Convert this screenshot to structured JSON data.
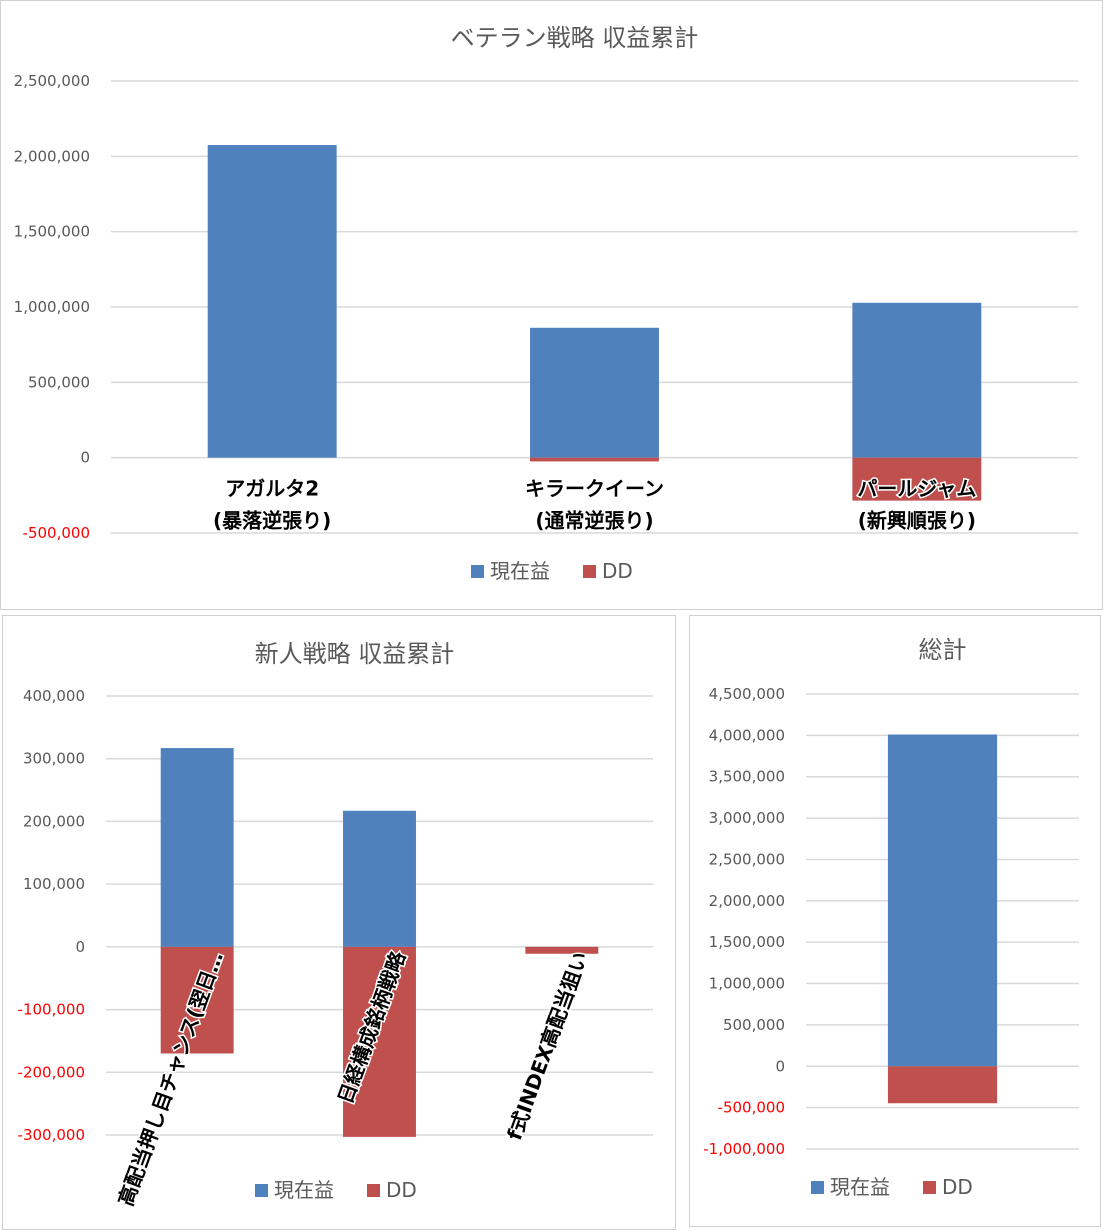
{
  "colors": {
    "profit": "#4f81bd",
    "dd": "#c0504d",
    "grid": "#d9d9d9",
    "negative_tick": "#ff0000"
  },
  "chart_data": [
    {
      "type": "bar",
      "stacked": true,
      "title": "ベテラン戦略 収益累計",
      "categories": [
        [
          "アガルタ2",
          "(暴落逆張り)"
        ],
        [
          "キラークイーン",
          "(通常逆張り)"
        ],
        [
          "パールジャム",
          "(新興順張り)"
        ]
      ],
      "series": [
        {
          "name": "現在益",
          "values": [
            2075000,
            862000,
            1028000
          ]
        },
        {
          "name": "DD",
          "values": [
            0,
            -25000,
            -285000
          ]
        }
      ],
      "ylim": [
        -500000,
        2500000
      ],
      "yticks": [
        2500000,
        2000000,
        1500000,
        1000000,
        500000,
        0,
        -500000
      ],
      "ytick_labels": [
        "2,500,000",
        "2,000,000",
        "1,500,000",
        "1,000,000",
        "500,000",
        "0",
        "-500,000"
      ],
      "grid": true,
      "legend": "bottom"
    },
    {
      "type": "bar",
      "stacked": true,
      "title": "新人戦略 収益累計",
      "categories": [
        [
          "高配当押し目チャンス(翌日…"
        ],
        [
          "日経構成銘柄戦略"
        ],
        [
          "f式INDEX高配当狙い"
        ]
      ],
      "series": [
        {
          "name": "現在益",
          "values": [
            317000,
            217000,
            0
          ]
        },
        {
          "name": "DD",
          "values": [
            -170000,
            -303000,
            -11000
          ]
        }
      ],
      "ylim": [
        -300000,
        400000
      ],
      "yticks": [
        400000,
        300000,
        200000,
        100000,
        0,
        -100000,
        -200000,
        -300000
      ],
      "ytick_labels": [
        "400,000",
        "300,000",
        "200,000",
        "100,000",
        "0",
        "-100,000",
        "-200,000",
        "-300,000"
      ],
      "grid": true,
      "legend": "bottom"
    },
    {
      "type": "bar",
      "stacked": true,
      "title": "総計",
      "categories": [
        [
          ""
        ]
      ],
      "series": [
        {
          "name": "現在益",
          "values": [
            4010000
          ]
        },
        {
          "name": "DD",
          "values": [
            -447000
          ]
        }
      ],
      "ylim": [
        -1000000,
        4500000
      ],
      "yticks": [
        4500000,
        4000000,
        3500000,
        3000000,
        2500000,
        2000000,
        1500000,
        1000000,
        500000,
        0,
        -500000,
        -1000000
      ],
      "ytick_labels": [
        "4,500,000",
        "4,000,000",
        "3,500,000",
        "3,000,000",
        "2,500,000",
        "2,000,000",
        "1,500,000",
        "1,000,000",
        "500,000",
        "0",
        "-500,000",
        "-1,000,000"
      ],
      "grid": true,
      "legend": "bottom"
    }
  ]
}
